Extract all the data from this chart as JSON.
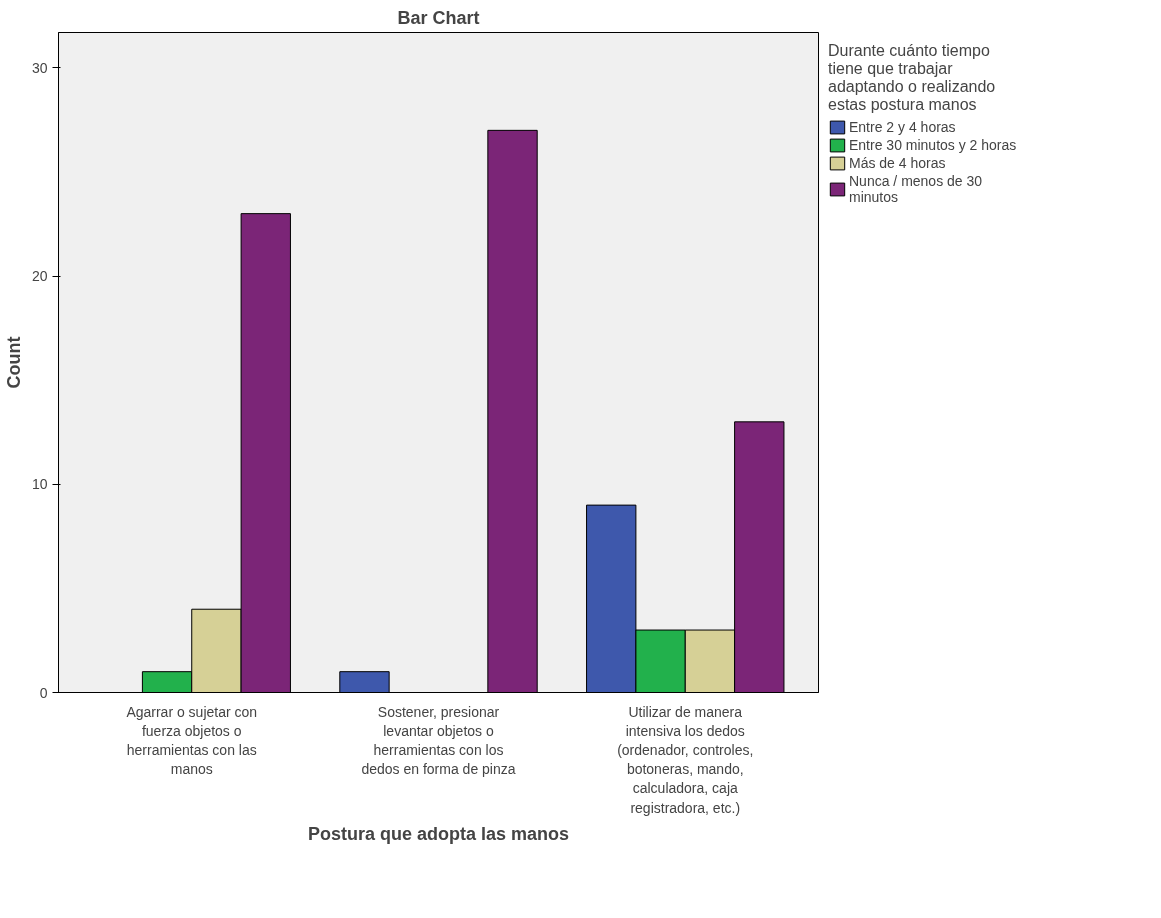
{
  "chart_data": {
    "type": "bar",
    "title": "Bar Chart",
    "xlabel": "Postura que adopta las manos",
    "ylabel": "Count",
    "legend_title": "Durante cuánto tiempo tiene que trabajar adaptando o realizando estas postura manos",
    "categories": [
      "Agarrar o sujetar con fuerza objetos o herramientas con las manos",
      "Sostener, presionar levantar objetos o herramientas con los dedos en forma de pinza",
      "Utilizar de manera intensiva los dedos (ordenador, controles, botoneras, mando, calculadora, caja registradora, etc.)"
    ],
    "series": [
      {
        "name": "Entre 2 y 4 horas",
        "color": "#3e58ac",
        "values": [
          null,
          1,
          9
        ]
      },
      {
        "name": "Entre 30 minutos y 2 horas",
        "color": "#22b14c",
        "values": [
          1,
          null,
          3
        ]
      },
      {
        "name": "Más de 4 horas",
        "color": "#d6d096",
        "values": [
          4,
          null,
          3
        ]
      },
      {
        "name": "Nunca / menos de 30 minutos",
        "color": "#7b2577",
        "values": [
          23,
          27,
          13
        ]
      }
    ],
    "ylim": [
      0,
      31.7
    ],
    "yticks": [
      0,
      10,
      20,
      30
    ],
    "grid": false,
    "legend": "right"
  }
}
